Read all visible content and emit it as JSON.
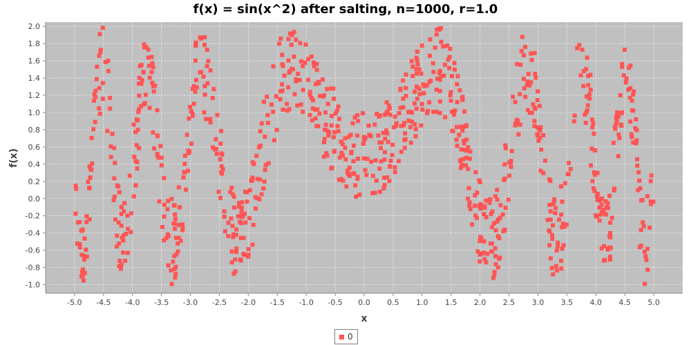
{
  "chart_data": {
    "type": "scatter",
    "title": "f(x) = sin(x^2) after salting, n=1000, r=1.0",
    "xlabel": "x",
    "ylabel": "f(x)",
    "xlim": [
      -5.5,
      5.5
    ],
    "ylim": [
      -1.1,
      2.05
    ],
    "x_ticks": [
      "-5.0",
      "-4.5",
      "-4.0",
      "-3.5",
      "-3.0",
      "-2.5",
      "-2.0",
      "-1.5",
      "-1.0",
      "-0.5",
      "0.0",
      "0.5",
      "1.0",
      "1.5",
      "2.0",
      "2.5",
      "3.0",
      "3.5",
      "4.0",
      "4.5",
      "5.0"
    ],
    "y_ticks": [
      "-1.0",
      "-0.8",
      "-0.6",
      "-0.4",
      "-0.2",
      "0.0",
      "0.2",
      "0.4",
      "0.6",
      "0.8",
      "1.0",
      "1.2",
      "1.4",
      "1.6",
      "1.8",
      "2.0"
    ],
    "grid": true,
    "legend_position": "bottom-center",
    "background_color": "#c0c0c0",
    "series": [
      {
        "name": "0",
        "color": "#ff5555",
        "x_range": [
          -5.0,
          5.0
        ],
        "n_points": 1000,
        "function": "sin(x^2)",
        "noise_range": [
          0,
          1.0
        ]
      }
    ]
  }
}
